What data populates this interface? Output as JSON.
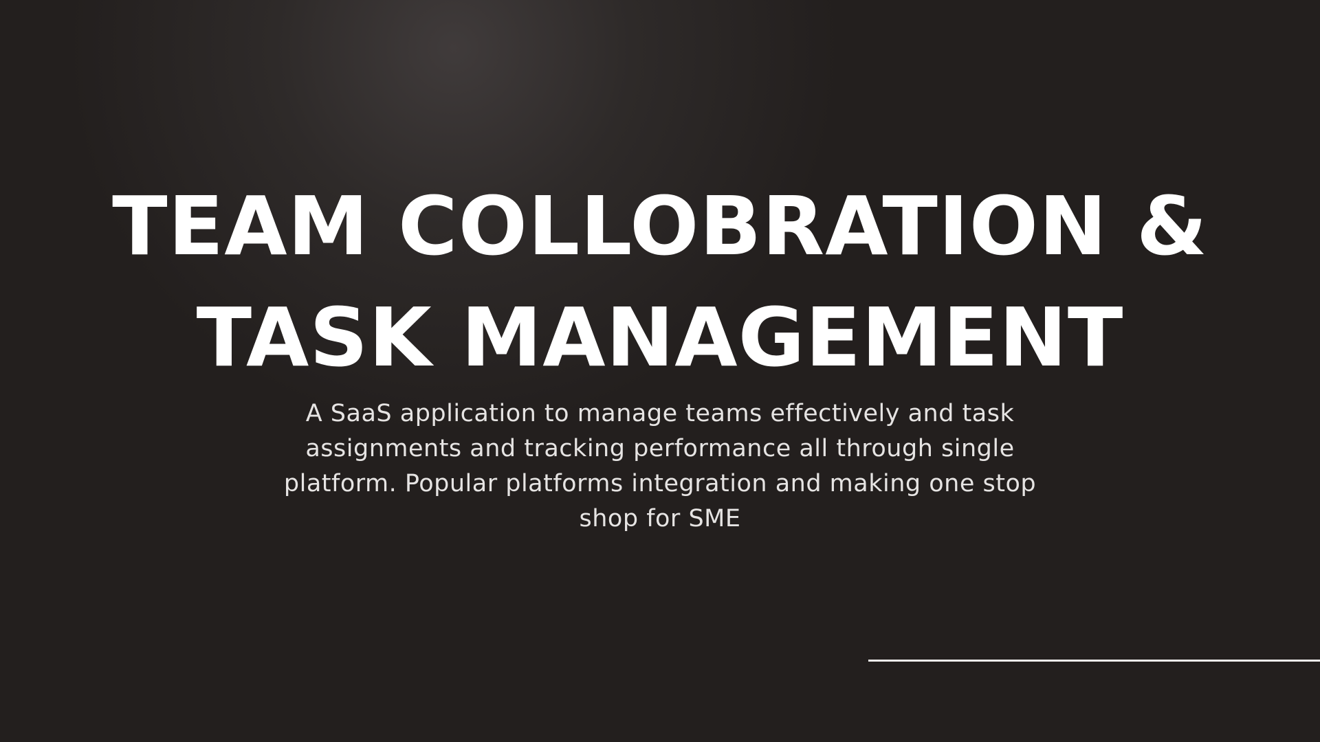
{
  "slide": {
    "title_lines": [
      "TEAM COLLOBRATION &",
      "TASK MANAGEMENT"
    ],
    "subtitle": "A SaaS application to manage teams effectively and task assignments and tracking performance all through single platform. Popular platforms integration and making one stop shop for SME"
  },
  "colors": {
    "background": "#231f1e",
    "glow": "#403b3b",
    "title": "#ffffff",
    "subtitle": "#e6e4e3",
    "rule": "#f2f0ef"
  }
}
